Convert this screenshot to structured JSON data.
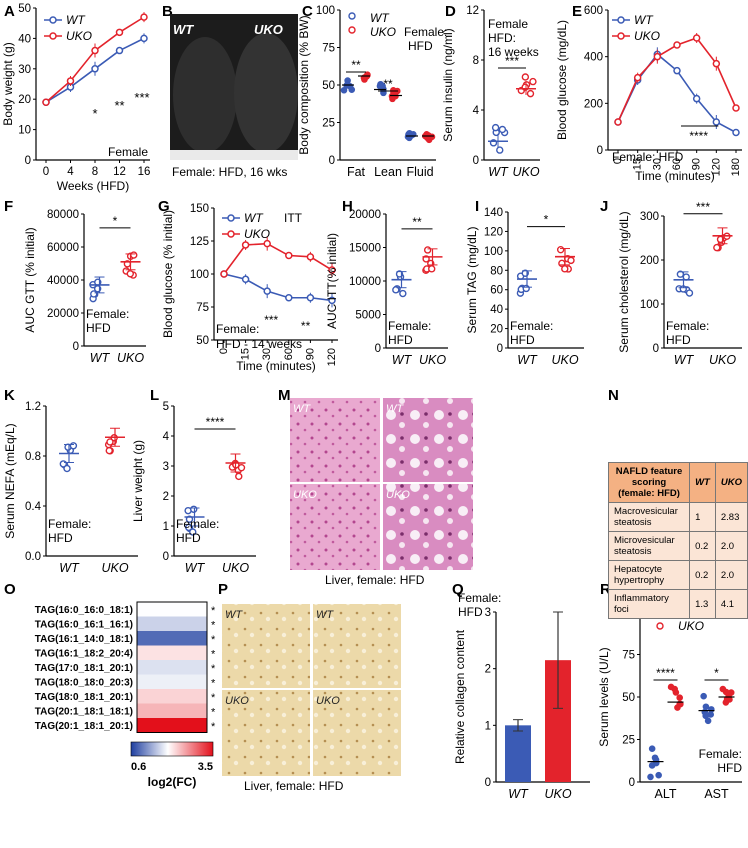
{
  "colors": {
    "wt": "#3b5bb5",
    "uko": "#e3232c",
    "black": "#000000"
  },
  "panels": {
    "A": {
      "letter": "A"
    },
    "B": {
      "letter": "B"
    },
    "C": {
      "letter": "C"
    },
    "D": {
      "letter": "D"
    },
    "E": {
      "letter": "E"
    },
    "F": {
      "letter": "F"
    },
    "G": {
      "letter": "G"
    },
    "H": {
      "letter": "H"
    },
    "I": {
      "letter": "I"
    },
    "J": {
      "letter": "J"
    },
    "K": {
      "letter": "K"
    },
    "L": {
      "letter": "L"
    },
    "M": {
      "letter": "M"
    },
    "N": {
      "letter": "N"
    },
    "O": {
      "letter": "O"
    },
    "P": {
      "letter": "P"
    },
    "Q": {
      "letter": "Q"
    },
    "R": {
      "letter": "R"
    }
  },
  "photos": {
    "B": {
      "wt_label": "WT",
      "uko_label": "UKO",
      "caption": "Female: HFD, 16 wks"
    },
    "M": {
      "labels": [
        "WT",
        "WT",
        "UKO",
        "UKO"
      ],
      "caption": "Liver, female: HFD"
    },
    "P": {
      "labels": [
        "WT",
        "WT",
        "UKO",
        "UKO"
      ],
      "caption": "Liver, female: HFD"
    }
  },
  "table_N": {
    "header": [
      "NAFLD feature scoring (female: HFD)",
      "WT",
      "UKO"
    ],
    "rows": [
      [
        "Macrovesicular steatosis",
        "1",
        "2.83"
      ],
      [
        "Microvesicular steatosis",
        "0.2",
        "2.0"
      ],
      [
        "Hepatocyte hypertrophy",
        "0.2",
        "2.0"
      ],
      [
        "Inflammatory foci",
        "1.3",
        "4.1"
      ]
    ]
  },
  "chart_data": [
    {
      "panel": "A",
      "type": "line",
      "xlabel": "Weeks (HFD)",
      "ylabel": "Body weight (g)",
      "ylim": [
        0,
        50
      ],
      "yticks": [
        "0",
        "10",
        "20",
        "30",
        "40",
        "50"
      ],
      "x": [
        0,
        4,
        8,
        12,
        16
      ],
      "xticks": [
        "0",
        "4",
        "8",
        "12",
        "16"
      ],
      "series": [
        {
          "name": "WT",
          "values": [
            19,
            24,
            30,
            36,
            40
          ]
        },
        {
          "name": "UKO",
          "values": [
            19,
            26,
            36,
            42,
            47
          ]
        }
      ],
      "significance": [
        "*",
        "**",
        "***"
      ],
      "note": "Female"
    },
    {
      "panel": "C",
      "type": "scatter",
      "ylabel": "Body composition (% BW)",
      "ylim": [
        0,
        100
      ],
      "yticks": [
        "0",
        "25",
        "50",
        "75",
        "100"
      ],
      "categories": [
        "Fat",
        "Lean",
        "Fluid"
      ],
      "series": [
        {
          "name": "WT",
          "values": [
            50,
            47,
            16
          ]
        },
        {
          "name": "UKO",
          "values": [
            56,
            43,
            16
          ]
        }
      ],
      "significance": [
        "**",
        "**"
      ],
      "note": "Female: HFD"
    },
    {
      "panel": "D",
      "type": "scatter",
      "ylabel": "Serum insulin (ng/ml)",
      "ylim": [
        0,
        12
      ],
      "yticks": [
        "0",
        "4",
        "8",
        "12"
      ],
      "categories": [
        "WT",
        "UKO"
      ],
      "series": [
        {
          "name": "WT",
          "values": [
            1.5
          ]
        },
        {
          "name": "UKO",
          "values": [
            5.7
          ]
        }
      ],
      "significance": [
        "***"
      ],
      "note": "Female HFD: 16 weeks"
    },
    {
      "panel": "E",
      "type": "line",
      "xlabel": "Time (minutes)",
      "ylabel": "Blood glucose (mg/dL)",
      "ylim": [
        0,
        600
      ],
      "yticks": [
        "0",
        "200",
        "400",
        "600"
      ],
      "x": [
        0,
        15,
        30,
        60,
        90,
        120,
        180
      ],
      "xticks": [
        "0",
        "15",
        "30",
        "60",
        "90",
        "120",
        "180"
      ],
      "series": [
        {
          "name": "WT",
          "values": [
            120,
            300,
            410,
            340,
            220,
            120,
            75
          ]
        },
        {
          "name": "UKO",
          "values": [
            120,
            310,
            400,
            450,
            480,
            370,
            180
          ]
        }
      ],
      "significance": [
        "****"
      ],
      "note": "Female: HFD"
    },
    {
      "panel": "F",
      "type": "scatter",
      "ylabel": "AUC GTT (% initial)",
      "ylim": [
        0,
        80000
      ],
      "yticks": [
        "0",
        "20000",
        "40000",
        "60000",
        "80000"
      ],
      "categories": [
        "WT",
        "UKO"
      ],
      "series": [
        {
          "name": "WT",
          "values": [
            37000
          ]
        },
        {
          "name": "UKO",
          "values": [
            51000
          ]
        }
      ],
      "significance": [
        "*"
      ],
      "note": "Female: HFD"
    },
    {
      "panel": "G",
      "type": "line",
      "xlabel": "Time (minutes)",
      "ylabel": "Blood glucose (% initial)",
      "ylim": [
        50,
        150
      ],
      "yticks": [
        "50",
        "75",
        "100",
        "125",
        "150"
      ],
      "x": [
        0,
        15,
        30,
        60,
        90,
        120
      ],
      "xticks": [
        "0",
        "15",
        "30",
        "60",
        "90",
        "120"
      ],
      "series": [
        {
          "name": "WT",
          "values": [
            100,
            96,
            87,
            82,
            82,
            80
          ]
        },
        {
          "name": "UKO",
          "values": [
            100,
            122,
            123,
            114,
            113,
            103
          ]
        }
      ],
      "significance": [
        "***",
        "**"
      ],
      "note": "Female: HFD - 14 weeks",
      "label": "ITT"
    },
    {
      "panel": "H",
      "type": "scatter",
      "ylabel": "AUC ITT(% initial)",
      "ylim": [
        0,
        20000
      ],
      "yticks": [
        "0",
        "5000",
        "10000",
        "15000",
        "20000"
      ],
      "categories": [
        "WT",
        "UKO"
      ],
      "series": [
        {
          "name": "WT",
          "values": [
            10200
          ]
        },
        {
          "name": "UKO",
          "values": [
            13600
          ]
        }
      ],
      "significance": [
        "**"
      ],
      "note": "Female: HFD"
    },
    {
      "panel": "I",
      "type": "scatter",
      "ylabel": "Serum TAG (mg/dL)",
      "ylim": [
        0,
        140
      ],
      "yticks": [
        "0",
        "20",
        "40",
        "60",
        "80",
        "100",
        "120",
        "140"
      ],
      "categories": [
        "WT",
        "UKO"
      ],
      "series": [
        {
          "name": "WT",
          "values": [
            71
          ]
        },
        {
          "name": "UKO",
          "values": [
            94
          ]
        }
      ],
      "significance": [
        "*"
      ],
      "note": "Female: HFD"
    },
    {
      "panel": "J",
      "type": "scatter",
      "ylabel": "Serum cholesterol  (mg/dL)",
      "ylim": [
        0,
        300
      ],
      "yticks": [
        "0",
        "100",
        "200",
        "300"
      ],
      "categories": [
        "WT",
        "UKO"
      ],
      "series": [
        {
          "name": "WT",
          "values": [
            155
          ]
        },
        {
          "name": "UKO",
          "values": [
            255
          ]
        }
      ],
      "significance": [
        "***"
      ],
      "note": "Female: HFD"
    },
    {
      "panel": "K",
      "type": "scatter",
      "ylabel": "Serum NEFA (mEq/L)",
      "ylim": [
        0,
        1.2
      ],
      "yticks": [
        "0.0",
        "0.4",
        "0.8",
        "1.2"
      ],
      "categories": [
        "WT",
        "UKO"
      ],
      "series": [
        {
          "name": "WT",
          "values": [
            0.82
          ]
        },
        {
          "name": "UKO",
          "values": [
            0.95
          ]
        }
      ],
      "significance": [],
      "note": "Female: HFD"
    },
    {
      "panel": "L",
      "type": "scatter",
      "ylabel": "Liver weight (g)",
      "ylim": [
        0,
        5
      ],
      "yticks": [
        "0",
        "1",
        "2",
        "3",
        "4",
        "5"
      ],
      "categories": [
        "WT",
        "UKO"
      ],
      "series": [
        {
          "name": "WT",
          "values": [
            1.3
          ]
        },
        {
          "name": "UKO",
          "values": [
            3.1
          ]
        }
      ],
      "significance": [
        "****"
      ],
      "note": "Female: HFD"
    },
    {
      "panel": "O",
      "type": "heatmap",
      "rows": [
        "TAG(16:0_16:0_18:1)",
        "TAG(16:0_16:1_16:1)",
        "TAG(16:1_14:0_18:1)",
        "TAG(16:1_18:2_20:4)",
        "TAG(17:0_18:1_20:1)",
        "TAG(18:0_18:0_20:3)",
        "TAG(18:0_18:1_20:1)",
        "TAG(20:1_18:1_18:1)",
        "TAG(20:1_18:1_20:1)"
      ],
      "values": [
        1.9,
        1.6,
        0.9,
        2.1,
        1.7,
        1.8,
        2.2,
        2.4,
        3.5
      ],
      "significance": [
        "*",
        "*",
        "*",
        "*",
        "*",
        "*",
        "*",
        "*",
        "*"
      ],
      "colorbar": {
        "min": "0.6",
        "max": "3.5",
        "label": "log2(FC)"
      }
    },
    {
      "panel": "Q",
      "type": "bar",
      "ylabel": "Relative collagen content",
      "ylim": [
        0,
        3
      ],
      "yticks": [
        "0",
        "1",
        "2",
        "3"
      ],
      "categories": [
        "WT",
        "UKO"
      ],
      "values": [
        1.0,
        2.15
      ],
      "errors": [
        0.1,
        0.85
      ],
      "note": "Female: HFD"
    },
    {
      "panel": "R",
      "type": "scatter",
      "ylabel": "Serum levels (U/L)",
      "ylim": [
        0,
        100
      ],
      "yticks": [
        "0",
        "25",
        "50",
        "75",
        "100"
      ],
      "categories": [
        "ALT",
        "AST"
      ],
      "series": [
        {
          "name": "WT",
          "values": [
            12,
            42
          ]
        },
        {
          "name": "UKO",
          "values": [
            47,
            50
          ]
        }
      ],
      "significance": [
        "****",
        "*"
      ],
      "note": "Female: HFD"
    }
  ]
}
